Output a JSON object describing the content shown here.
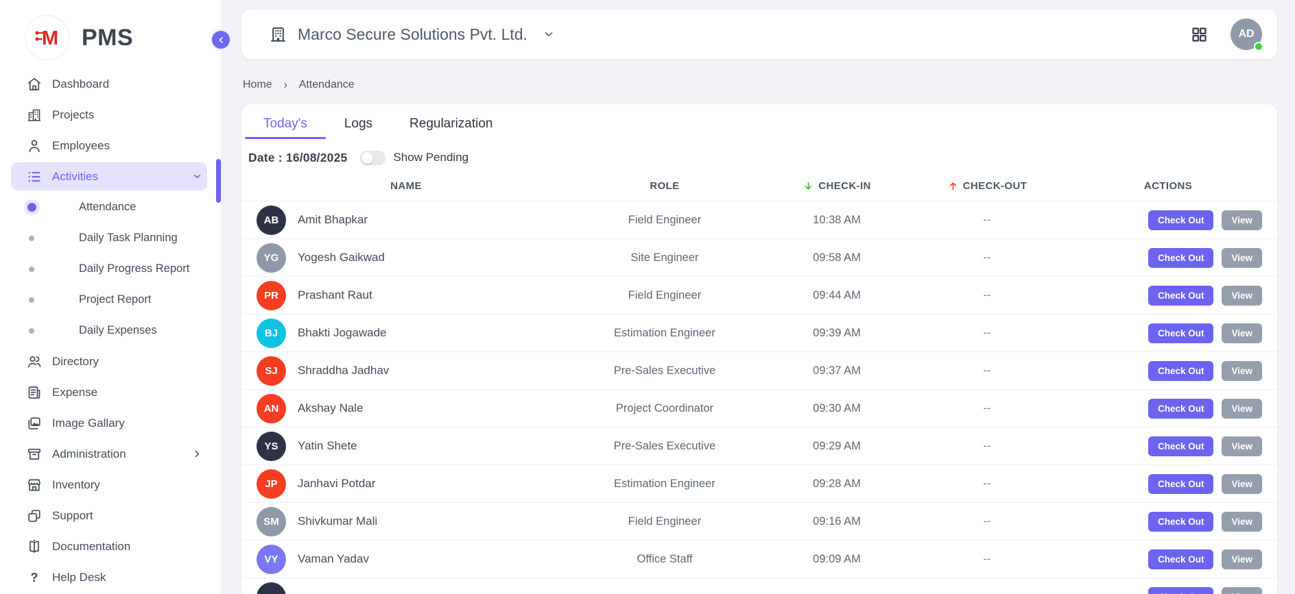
{
  "app": {
    "name": "PMS"
  },
  "sidebar": {
    "items": [
      {
        "label": "Dashboard",
        "icon": "home-icon"
      },
      {
        "label": "Projects",
        "icon": "buildings-icon"
      },
      {
        "label": "Employees",
        "icon": "person-icon"
      },
      {
        "label": "Activities",
        "icon": "list-icon",
        "active": true,
        "chevron": "down",
        "children": [
          {
            "label": "Attendance",
            "active": true
          },
          {
            "label": "Daily Task Planning",
            "active": false
          },
          {
            "label": "Daily Progress Report",
            "active": false
          },
          {
            "label": "Project Report",
            "active": false
          },
          {
            "label": "Daily Expenses",
            "active": false
          }
        ]
      },
      {
        "label": "Directory",
        "icon": "people-icon"
      },
      {
        "label": "Expense",
        "icon": "receipt-icon"
      },
      {
        "label": "Image Gallary",
        "icon": "image-icon"
      },
      {
        "label": "Administration",
        "icon": "archive-icon",
        "chevron": "right"
      },
      {
        "label": "Inventory",
        "icon": "store-icon"
      },
      {
        "label": "Support",
        "icon": "copy-icon"
      },
      {
        "label": "Documentation",
        "icon": "book-icon"
      },
      {
        "label": "Help Desk",
        "icon": "question-icon"
      }
    ]
  },
  "header": {
    "company_name": "Marco Secure Solutions Pvt. Ltd.",
    "avatar_initials": "AD",
    "online": true
  },
  "breadcrumb": {
    "items": [
      "Home",
      "Attendance"
    ]
  },
  "tabs": [
    {
      "label": "Today's",
      "active": true
    },
    {
      "label": "Logs",
      "active": false
    },
    {
      "label": "Regularization",
      "active": false
    }
  ],
  "filters": {
    "date_label": "Date : 16/08/2025",
    "show_pending_label": "Show Pending",
    "show_pending_on": false
  },
  "attendance_table": {
    "columns": [
      "NAME",
      "ROLE",
      "CHECK-IN",
      "CHECK-OUT",
      "ACTIONS"
    ],
    "actions": {
      "check_out": "Check Out",
      "view": "View"
    },
    "rows": [
      {
        "initials": "AB",
        "avatar_color": "#2e3247",
        "name": "Amit Bhapkar",
        "role": "Field Engineer",
        "check_in": "10:38 AM",
        "check_out": "--"
      },
      {
        "initials": "YG",
        "avatar_color": "#8e99a9",
        "name": "Yogesh Gaikwad",
        "role": "Site Engineer",
        "check_in": "09:58 AM",
        "check_out": "--"
      },
      {
        "initials": "PR",
        "avatar_color": "#f53d22",
        "name": "Prashant Raut",
        "role": "Field Engineer",
        "check_in": "09:44 AM",
        "check_out": "--"
      },
      {
        "initials": "BJ",
        "avatar_color": "#0cc3e2",
        "name": "Bhakti Jogawade",
        "role": "Estimation Engineer",
        "check_in": "09:39 AM",
        "check_out": "--"
      },
      {
        "initials": "SJ",
        "avatar_color": "#f53d22",
        "name": "Shraddha Jadhav",
        "role": "Pre-Sales Executive",
        "check_in": "09:37 AM",
        "check_out": "--"
      },
      {
        "initials": "AN",
        "avatar_color": "#f53d22",
        "name": "Akshay Nale",
        "role": "Project Coordinator",
        "check_in": "09:30 AM",
        "check_out": "--"
      },
      {
        "initials": "YS",
        "avatar_color": "#2e3247",
        "name": "Yatin Shete",
        "role": "Pre-Sales Executive",
        "check_in": "09:29 AM",
        "check_out": "--"
      },
      {
        "initials": "JP",
        "avatar_color": "#f53d22",
        "name": "Janhavi Potdar",
        "role": "Estimation Engineer",
        "check_in": "09:28 AM",
        "check_out": "--"
      },
      {
        "initials": "SM",
        "avatar_color": "#8e99a9",
        "name": "Shivkumar Mali",
        "role": "Field Engineer",
        "check_in": "09:16 AM",
        "check_out": "--"
      },
      {
        "initials": "VY",
        "avatar_color": "#7b77f3",
        "name": "Vaman Yadav",
        "role": "Office Staff",
        "check_in": "09:09 AM",
        "check_out": "--"
      },
      {
        "initials": "",
        "avatar_color": "#2e3247",
        "name": "",
        "role": "",
        "check_in": "",
        "check_out": "",
        "partial": true
      }
    ]
  },
  "colors": {
    "accent": "#6c63f0",
    "check_in_arrow": "#2fc11e",
    "check_out_arrow": "#f43a28",
    "presence_green": "#3fd33f",
    "logo_red": "#dd2b22"
  }
}
